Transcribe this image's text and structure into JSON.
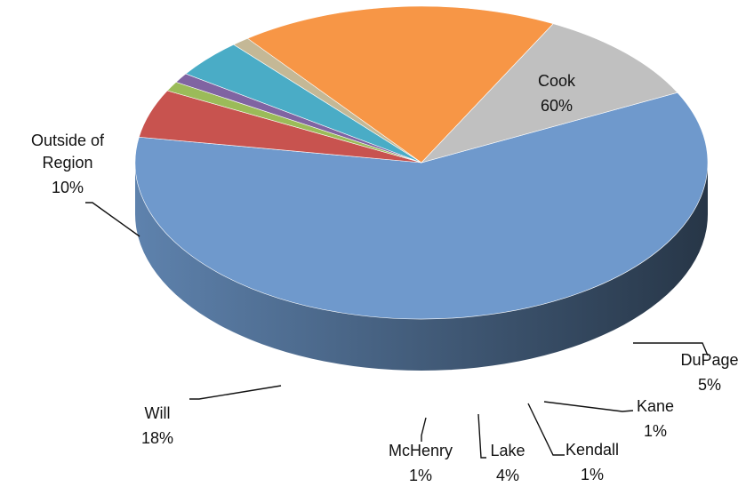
{
  "chart_data": {
    "type": "pie",
    "style": "3d",
    "slices": [
      {
        "name": "Cook",
        "value": 60,
        "label": "60%",
        "color": "#6f99cc"
      },
      {
        "name": "DuPage",
        "value": 5,
        "label": "5%",
        "color": "#c8534f"
      },
      {
        "name": "Kane",
        "value": 1,
        "label": "1%",
        "color": "#9bbb59"
      },
      {
        "name": "Kendall",
        "value": 1,
        "label": "1%",
        "color": "#8064a2"
      },
      {
        "name": "Lake",
        "value": 4,
        "label": "4%",
        "color": "#4aacc6"
      },
      {
        "name": "McHenry",
        "value": 1,
        "label": "1%",
        "color": "#c4b896"
      },
      {
        "name": "Will",
        "value": 18,
        "label": "18%",
        "color": "#f79646"
      },
      {
        "name": "Outside of Region",
        "value": 10,
        "label": "10%",
        "color": "#c0c0c0"
      }
    ],
    "legend": "none",
    "data_labels": "category-and-percent"
  }
}
